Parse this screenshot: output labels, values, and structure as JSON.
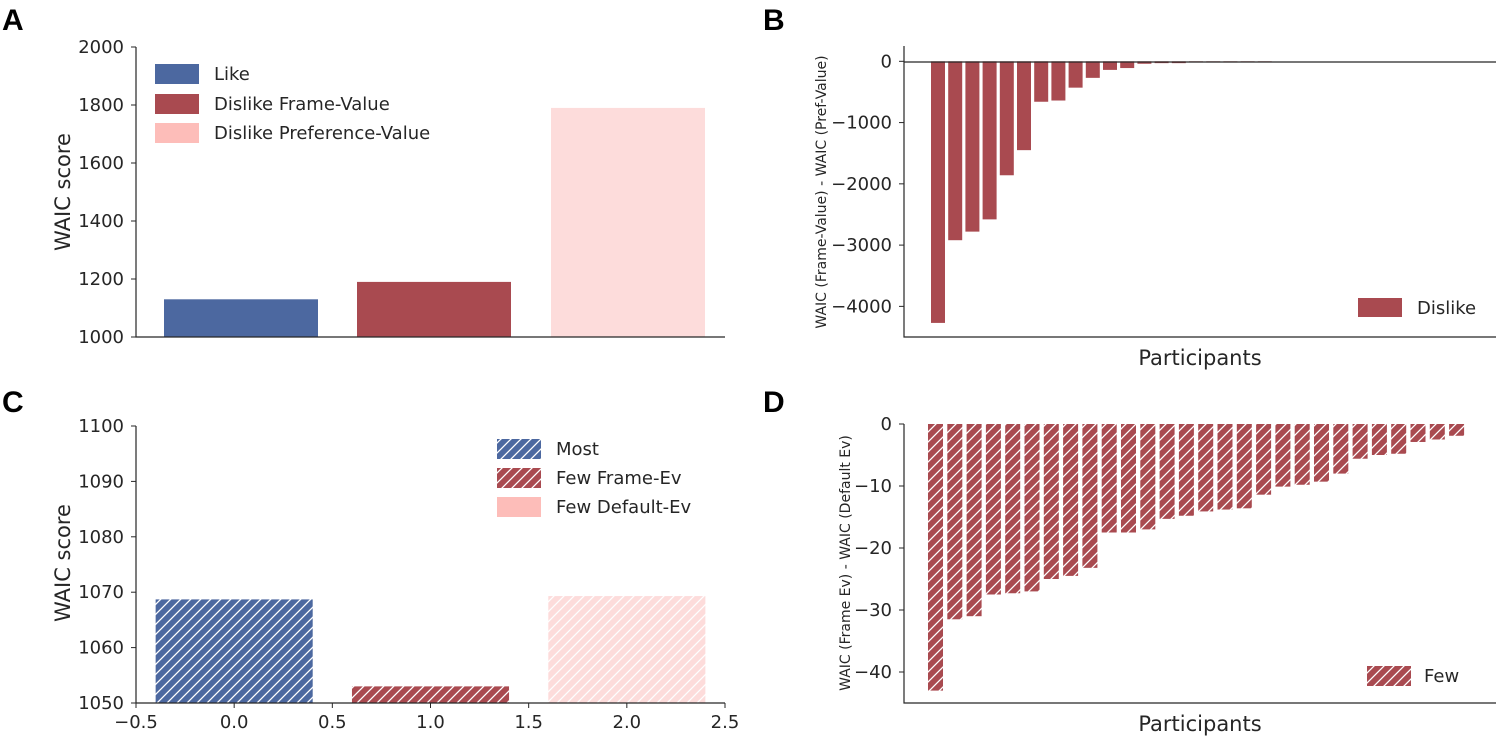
{
  "colors": {
    "blue": "#4c68a0",
    "red": "#a94a50",
    "pink": "#fddcdb",
    "pink_legend": "#fdbdb9",
    "axis": "#262626"
  },
  "chart_data": [
    {
      "panel": "A",
      "type": "bar",
      "categories": [
        "Like",
        "Dislike Frame-Value",
        "Dislike Preference-Value"
      ],
      "values": [
        1130,
        1190,
        1790
      ],
      "ylabel": "WAIC score",
      "xlabel": "",
      "ylim": [
        1000,
        2000
      ],
      "yticks": [
        1000,
        1200,
        1400,
        1600,
        1800,
        2000
      ],
      "legend": [
        "Like",
        "Dislike Frame-Value",
        "Dislike Preference-Value"
      ],
      "legend_loc": "top-left"
    },
    {
      "panel": "B",
      "type": "bar",
      "series_name": "Dislike",
      "values": [
        -4270,
        -2920,
        -2780,
        -2580,
        -1860,
        -1450,
        -660,
        -640,
        -430,
        -270,
        -140,
        -110,
        -40,
        -30,
        -30,
        -20,
        -20,
        -20,
        -10,
        -10
      ],
      "ylabel": "WAIC (Frame-Value) - WAIC (Pref-Value)",
      "xlabel": "Participants",
      "ylim": [
        -4500,
        250
      ],
      "yticks": [
        0,
        -1000,
        -2000,
        -3000,
        -4000
      ],
      "legend": [
        "Dislike"
      ],
      "legend_loc": "bottom-right"
    },
    {
      "panel": "C",
      "type": "bar",
      "hatched": true,
      "categories": [
        "Most",
        "Few Frame-Ev",
        "Few Default-Ev"
      ],
      "x": [
        0.0,
        1.0,
        2.0
      ],
      "values": [
        1068.7,
        1053.0,
        1069.3
      ],
      "ylabel": "WAIC score",
      "xlabel": "",
      "ylim": [
        1050,
        1100
      ],
      "xlim": [
        -0.5,
        2.5
      ],
      "yticks": [
        1050,
        1060,
        1070,
        1080,
        1090,
        1100
      ],
      "xticks": [
        -0.5,
        0.0,
        0.5,
        1.0,
        1.5,
        2.0,
        2.5
      ],
      "xticklabels": [
        "−0.5",
        "0.0",
        "0.5",
        "1.0",
        "1.5",
        "2.0",
        "2.5"
      ],
      "legend": [
        "Most",
        "Few Frame-Ev",
        "Few Default-Ev"
      ],
      "legend_loc": "top-right"
    },
    {
      "panel": "D",
      "type": "bar",
      "hatched": true,
      "series_name": "Few",
      "values": [
        -43,
        -31.5,
        -31,
        -27.5,
        -27.3,
        -27,
        -25,
        -24.5,
        -23.2,
        -17.5,
        -17.5,
        -17,
        -15.3,
        -14.8,
        -14.1,
        -13.8,
        -13.6,
        -11.4,
        -10.1,
        -9.8,
        -9.3,
        -8,
        -5.6,
        -5,
        -4.8,
        -2.9,
        -2.5,
        -1.9
      ],
      "ylabel": "WAIC (Frame Ev) - WAIC (Default Ev)",
      "xlabel": "Participants",
      "ylim": [
        -45,
        0
      ],
      "yticks": [
        0,
        -10,
        -20,
        -30,
        -40
      ],
      "legend": [
        "Few"
      ],
      "legend_loc": "bottom-right"
    }
  ]
}
